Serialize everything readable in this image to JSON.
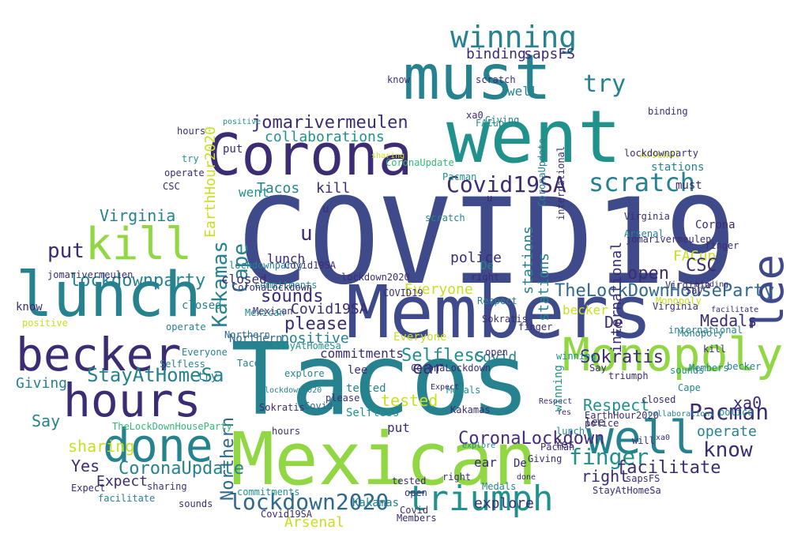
{
  "words": [
    {
      "id": "w1",
      "text": "COVID19"
    },
    {
      "id": "w2",
      "text": "Tacos"
    },
    {
      "id": "w3",
      "text": "Members"
    },
    {
      "id": "w4",
      "text": "Mexican"
    },
    {
      "id": "w5",
      "text": "went"
    },
    {
      "id": "w6",
      "text": "must"
    },
    {
      "id": "w7",
      "text": "Corona"
    },
    {
      "id": "w8",
      "text": "lunch"
    },
    {
      "id": "w9",
      "text": "becker"
    },
    {
      "id": "w10",
      "text": "hours"
    },
    {
      "id": "w11",
      "text": "kill"
    },
    {
      "id": "w12",
      "text": "done"
    },
    {
      "id": "w13",
      "text": "Monopoly"
    },
    {
      "id": "w14",
      "text": "well"
    },
    {
      "id": "w15",
      "text": "lee"
    },
    {
      "id": "w16",
      "text": "triumph"
    },
    {
      "id": "w17",
      "text": "winning"
    },
    {
      "id": "w18",
      "text": "scratch"
    },
    {
      "id": "w19",
      "text": "jomarivermeulen"
    },
    {
      "id": "w20",
      "text": "Covid19SA"
    },
    {
      "id": "w21",
      "text": "lockdown2020"
    },
    {
      "id": "w22",
      "text": "CoronaUpdate"
    },
    {
      "id": "w23",
      "text": "StayAtHomeSa"
    },
    {
      "id": "w24",
      "text": "CoronaLockdown"
    },
    {
      "id": "w25",
      "text": "lockdownparty"
    },
    {
      "id": "w26",
      "text": "Pacman"
    },
    {
      "id": "w27",
      "text": "finger"
    },
    {
      "id": "w28",
      "text": "know"
    },
    {
      "id": "w29",
      "text": "facilitate"
    },
    {
      "id": "w30",
      "text": "Sokratis"
    },
    {
      "id": "w31",
      "text": "Northern"
    },
    {
      "id": "w32",
      "text": "TheLockDownHouseParty"
    },
    {
      "id": "w33",
      "text": "Kakamas"
    },
    {
      "id": "w34",
      "text": "Cape"
    },
    {
      "id": "w35",
      "text": "Virginia"
    },
    {
      "id": "w36",
      "text": "please"
    },
    {
      "id": "w37",
      "text": "sounds"
    },
    {
      "id": "w38",
      "text": "closed"
    },
    {
      "id": "w39",
      "text": "Selfless"
    },
    {
      "id": "w40",
      "text": "commitments"
    },
    {
      "id": "w41",
      "text": "Yes"
    },
    {
      "id": "w42",
      "text": "Expect"
    },
    {
      "id": "w43",
      "text": "ear"
    },
    {
      "id": "w44",
      "text": "Arsenal"
    },
    {
      "id": "w45",
      "text": "explore"
    },
    {
      "id": "w46",
      "text": "put"
    },
    {
      "id": "w47",
      "text": "try"
    },
    {
      "id": "w48",
      "text": "police"
    },
    {
      "id": "w49",
      "text": "FACup"
    },
    {
      "id": "w50",
      "text": "Everyone"
    },
    {
      "id": "w51",
      "text": "sapsFS"
    },
    {
      "id": "w52",
      "text": "binding"
    },
    {
      "id": "w53",
      "text": "collaborations"
    },
    {
      "id": "w54",
      "text": "stations"
    },
    {
      "id": "w55",
      "text": "international"
    },
    {
      "id": "w56",
      "text": "Medals"
    },
    {
      "id": "w57",
      "text": "CSC"
    },
    {
      "id": "w58",
      "text": "Respect"
    },
    {
      "id": "w59",
      "text": "positive"
    },
    {
      "id": "w60",
      "text": "EarthHour2020"
    },
    {
      "id": "w61",
      "text": "open"
    },
    {
      "id": "w62",
      "text": "right"
    },
    {
      "id": "w63",
      "text": "sharing"
    },
    {
      "id": "w64",
      "text": "tested"
    },
    {
      "id": "w65",
      "text": "Giving"
    },
    {
      "id": "w66",
      "text": "Covid"
    },
    {
      "id": "w67",
      "text": "Say"
    },
    {
      "id": "w68",
      "text": "xa0"
    },
    {
      "id": "w69",
      "text": "u"
    },
    {
      "id": "w70",
      "text": "De"
    },
    {
      "id": "w71",
      "text": "operate"
    },
    {
      "id": "w72",
      "text": "Covid19SA"
    },
    {
      "id": "w73",
      "text": "Tacos"
    },
    {
      "id": "w74",
      "text": "kill"
    },
    {
      "id": "w75",
      "text": "lunch"
    },
    {
      "id": "w76",
      "text": "Virginia"
    },
    {
      "id": "w77",
      "text": "positive"
    },
    {
      "id": "w78",
      "text": "Northern"
    },
    {
      "id": "w79",
      "text": "commitments"
    },
    {
      "id": "w80",
      "text": "Selfless"
    },
    {
      "id": "w81",
      "text": "Covid"
    },
    {
      "id": "w82",
      "text": "sounds"
    },
    {
      "id": "w83",
      "text": "Medals"
    },
    {
      "id": "w84",
      "text": "becker"
    },
    {
      "id": "w85",
      "text": "Monopoly"
    },
    {
      "id": "w86",
      "text": "Sokratis"
    },
    {
      "id": "w87",
      "text": "Kakamas"
    },
    {
      "id": "w88",
      "text": "Pacman"
    },
    {
      "id": "w89",
      "text": "xa0"
    },
    {
      "id": "w90",
      "text": "know"
    },
    {
      "id": "w91",
      "text": "operate"
    },
    {
      "id": "w92",
      "text": "StayAtHomeSa"
    },
    {
      "id": "w93",
      "text": "facilitate"
    },
    {
      "id": "w94",
      "text": "right"
    },
    {
      "id": "w95",
      "text": "finger"
    },
    {
      "id": "w96",
      "text": "Expect"
    },
    {
      "id": "w97",
      "text": "CoronaUpdate"
    },
    {
      "id": "w98",
      "text": "sharing"
    },
    {
      "id": "w99",
      "text": "Yes"
    },
    {
      "id": "w100",
      "text": "Members"
    },
    {
      "id": "w101",
      "text": "Mexican"
    },
    {
      "id": "w102",
      "text": "explore"
    },
    {
      "id": "w103",
      "text": "Arsenal"
    },
    {
      "id": "w104",
      "text": "Covid19SA"
    },
    {
      "id": "w105",
      "text": "lockdown2020"
    },
    {
      "id": "w106",
      "text": "put"
    },
    {
      "id": "w107",
      "text": "CoronaLockdown"
    },
    {
      "id": "w108",
      "text": "Everyone"
    },
    {
      "id": "w109",
      "text": "please"
    },
    {
      "id": "w110",
      "text": "lee"
    },
    {
      "id": "w111",
      "text": "scratch"
    },
    {
      "id": "w112",
      "text": "Giving"
    },
    {
      "id": "w113",
      "text": "try"
    },
    {
      "id": "w114",
      "text": "COVID19"
    },
    {
      "id": "w115",
      "text": "jomarivermeulen"
    },
    {
      "id": "w116",
      "text": "lockdownparty"
    },
    {
      "id": "w117",
      "text": "De"
    },
    {
      "id": "w118",
      "text": "hours"
    },
    {
      "id": "w119",
      "text": "Virginia"
    },
    {
      "id": "w120",
      "text": "Cape"
    },
    {
      "id": "w121",
      "text": "CSC"
    },
    {
      "id": "w122",
      "text": "will"
    },
    {
      "id": "w123",
      "text": "Respect"
    },
    {
      "id": "w124",
      "text": "tested"
    },
    {
      "id": "w125",
      "text": "Say"
    },
    {
      "id": "w126",
      "text": "open"
    },
    {
      "id": "w127",
      "text": "police"
    },
    {
      "id": "w128",
      "text": "Corona"
    },
    {
      "id": "w129",
      "text": "binding"
    },
    {
      "id": "w130",
      "text": "sapsFS"
    },
    {
      "id": "w131",
      "text": "FACup"
    },
    {
      "id": "w132",
      "text": "EarthHour2020"
    },
    {
      "id": "w133",
      "text": "international"
    },
    {
      "id": "w134",
      "text": "went"
    },
    {
      "id": "w135",
      "text": "stations"
    },
    {
      "id": "w136",
      "text": "collaborations"
    },
    {
      "id": "w137",
      "text": "ear"
    },
    {
      "id": "w138",
      "text": "triumph"
    },
    {
      "id": "w139",
      "text": "winning"
    },
    {
      "id": "w140",
      "text": "must"
    },
    {
      "id": "w141",
      "text": "done"
    },
    {
      "id": "w142",
      "text": "closed"
    },
    {
      "id": "w143",
      "text": "u"
    },
    {
      "id": "w144",
      "text": "well"
    },
    {
      "id": "w145",
      "text": "TheLockDownHouseParty"
    },
    {
      "id": "w146",
      "text": "Members"
    },
    {
      "id": "w147",
      "text": "kill"
    },
    {
      "id": "w148",
      "text": "Tacos"
    },
    {
      "id": "w149",
      "text": "Mexican"
    },
    {
      "id": "w150",
      "text": "sounds"
    },
    {
      "id": "w151",
      "text": "lunch"
    },
    {
      "id": "w152",
      "text": "hours"
    },
    {
      "id": "w153",
      "text": "becker"
    },
    {
      "id": "w154",
      "text": "Monopoly"
    },
    {
      "id": "w155",
      "text": "positive"
    },
    {
      "id": "w156",
      "text": "Selfless"
    },
    {
      "id": "w157",
      "text": "lockdownparty"
    },
    {
      "id": "w158",
      "text": "jomarivermeulen"
    },
    {
      "id": "w159",
      "text": "Northern"
    },
    {
      "id": "w160",
      "text": "Medals"
    },
    {
      "id": "w161",
      "text": "commitments"
    },
    {
      "id": "w162",
      "text": "Kakamas"
    },
    {
      "id": "w163",
      "text": "Sokratis"
    },
    {
      "id": "w164",
      "text": "sharing"
    },
    {
      "id": "w165",
      "text": "operate"
    },
    {
      "id": "w166",
      "text": "Expect"
    },
    {
      "id": "w167",
      "text": "facilitate"
    },
    {
      "id": "w168",
      "text": "Arsenal"
    },
    {
      "id": "w169",
      "text": "explore"
    },
    {
      "id": "w170",
      "text": "lockdown2020"
    },
    {
      "id": "w171",
      "text": "Covid19SA"
    },
    {
      "id": "w172",
      "text": "StayAtHomeSa"
    },
    {
      "id": "w173",
      "text": "CoronaLockdown"
    },
    {
      "id": "w174",
      "text": "CoronaUpdate"
    },
    {
      "id": "w175",
      "text": "Everyone"
    },
    {
      "id": "w176",
      "text": "Virginia"
    },
    {
      "id": "w177",
      "text": "winning"
    },
    {
      "id": "w178",
      "text": "scratch"
    },
    {
      "id": "w179",
      "text": "finger"
    },
    {
      "id": "w180",
      "text": "know"
    },
    {
      "id": "w181",
      "text": "Pacman"
    },
    {
      "id": "w182",
      "text": "xa0"
    },
    {
      "id": "w183",
      "text": "Yes"
    },
    {
      "id": "w184",
      "text": "right"
    },
    {
      "id": "w185",
      "text": "De"
    },
    {
      "id": "w186",
      "text": "binding"
    },
    {
      "id": "w187",
      "text": "police"
    },
    {
      "id": "w188",
      "text": "open"
    },
    {
      "id": "w189",
      "text": "tested"
    },
    {
      "id": "w190",
      "text": "Giving"
    },
    {
      "id": "w191",
      "text": "try"
    },
    {
      "id": "w192",
      "text": "put"
    },
    {
      "id": "w193",
      "text": "lee"
    },
    {
      "id": "w194",
      "text": "closed"
    },
    {
      "id": "w195",
      "text": "Respect"
    },
    {
      "id": "w196",
      "text": "Covid"
    },
    {
      "id": "w197",
      "text": "Say"
    },
    {
      "id": "w198",
      "text": "u"
    },
    {
      "id": "w199",
      "text": "stations"
    },
    {
      "id": "w200",
      "text": "international"
    }
  ],
  "colors": {
    "navy": "#3b2c74",
    "indigo": "#3f4a8a",
    "blue": "#31688e",
    "teal": "#21918c",
    "teal2": "#26828e",
    "green": "#35b779",
    "lime": "#90d743",
    "yellow": "#c8e020",
    "purple": "#472d7b",
    "dark": "#440154"
  }
}
